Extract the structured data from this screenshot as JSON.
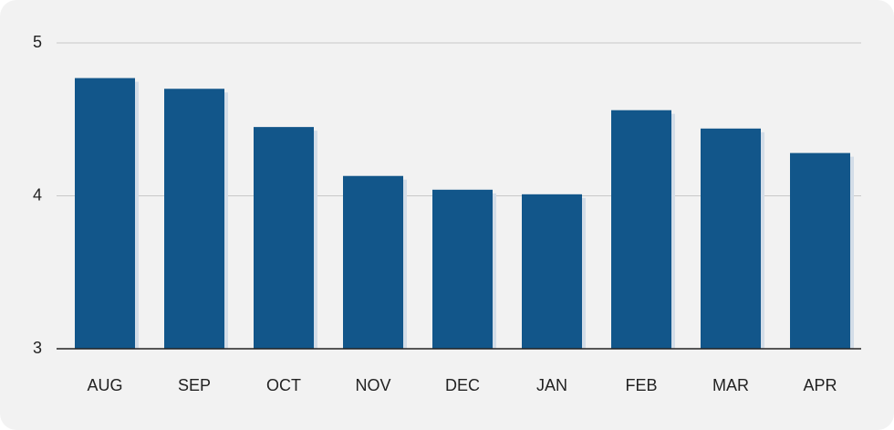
{
  "chart_data": {
    "type": "bar",
    "categories": [
      "AUG",
      "SEP",
      "OCT",
      "NOV",
      "DEC",
      "JAN",
      "FEB",
      "MAR",
      "APR"
    ],
    "values": [
      4.77,
      4.7,
      4.45,
      4.13,
      4.04,
      4.01,
      4.56,
      4.44,
      4.28
    ],
    "color": "#12568a",
    "ylim": [
      3,
      5
    ],
    "yticks": [
      3,
      4,
      5
    ],
    "grid": true
  }
}
